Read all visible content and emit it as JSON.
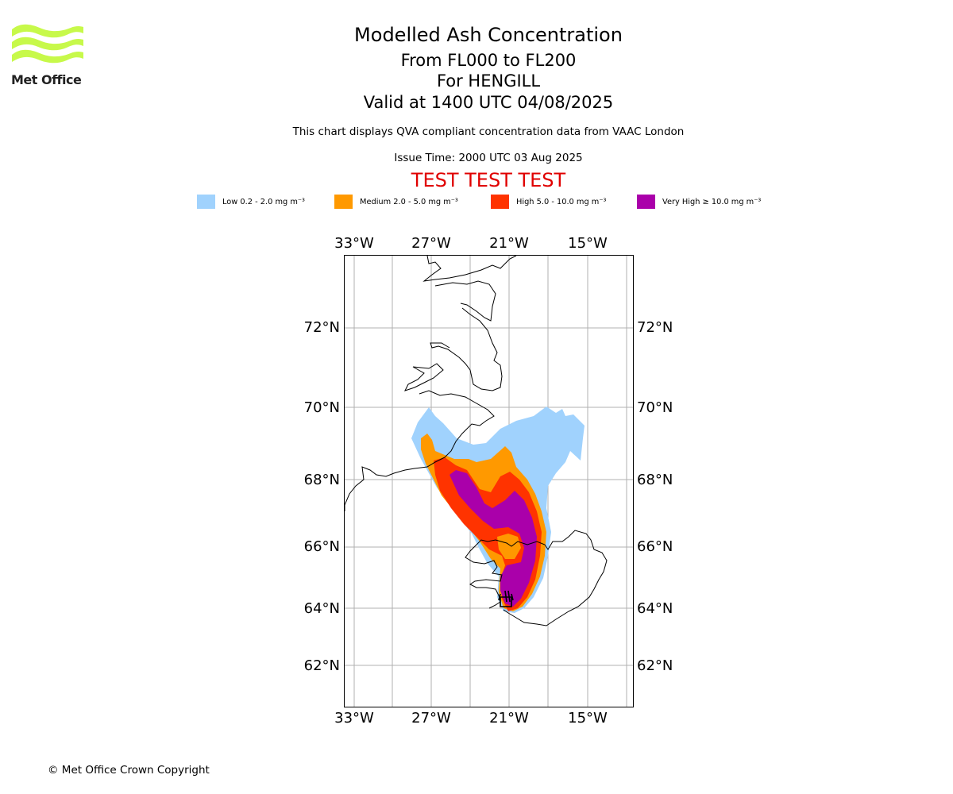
{
  "header": {
    "logo_text": "Met Office",
    "title": "Modelled Ash Concentration",
    "levels": "From FL000 to FL200",
    "volcano": "For HENGILL",
    "valid": "Valid at 1400 UTC 04/08/2025",
    "disclaimer": "This chart displays QVA compliant concentration data from VAAC London",
    "issue_time": "Issue Time: 2000 UTC 03 Aug 2025",
    "test_banner": "TEST TEST TEST"
  },
  "legend": [
    {
      "label": "Low 0.2 - 2.0 mg m⁻³",
      "color": "#a0d2fd"
    },
    {
      "label": "Medium 2.0 - 5.0 mg m⁻³",
      "color": "#ff9900"
    },
    {
      "label": "High 5.0 - 10.0 mg m⁻³",
      "color": "#ff3300"
    },
    {
      "label": "Very High ≥ 10.0 mg m⁻³",
      "color": "#aa00aa"
    }
  ],
  "map": {
    "lon_labels": [
      "33°W",
      "27°W",
      "21°W",
      "15°W"
    ],
    "lat_labels": [
      "72°N",
      "70°N",
      "68°N",
      "66°N",
      "64°N",
      "62°N"
    ]
  },
  "footer": {
    "copyright": "© Met Office Crown Copyright"
  }
}
